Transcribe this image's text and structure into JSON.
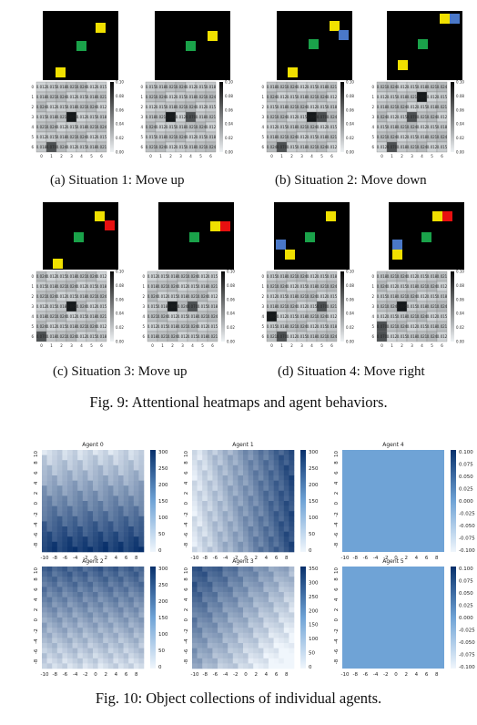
{
  "fig9": {
    "caption": "Fig. 9: Attentional heatmaps and agent behaviors.",
    "subcaptions": [
      "(a) Situation 1: Move up",
      "(b) Situation 2: Move down",
      "(c) Situation 3: Move up",
      "(d) Situation 4: Move right"
    ],
    "colorbar_ticks": [
      "0.10",
      "0.08",
      "0.06",
      "0.04",
      "0.02",
      "0.00"
    ],
    "axis_ticks": [
      "0",
      "1",
      "2",
      "3",
      "4",
      "5",
      "6"
    ],
    "colors": {
      "agent": "#1aa24a",
      "target": "#f0e000",
      "red": "#e81010",
      "blue": "#4a78c8",
      "bg": "#000000"
    }
  },
  "fig10": {
    "caption": "Fig. 10: Object collections of individual agents.",
    "x_ticks": [
      "-10",
      "-8",
      "-6",
      "-4",
      "-2",
      "0",
      "2",
      "4",
      "6",
      "8"
    ],
    "y_ticks": [
      "10",
      "8",
      "6",
      "4",
      "2",
      "0",
      "-2",
      "-4",
      "-6",
      "-8"
    ],
    "panels": [
      {
        "title": "Agent 0",
        "cbar": [
          "300",
          "250",
          "200",
          "150",
          "100",
          "50",
          "0"
        ]
      },
      {
        "title": "Agent 1",
        "cbar": [
          "300",
          "250",
          "200",
          "150",
          "100",
          "50",
          "0"
        ]
      },
      {
        "title": "Agent 4",
        "cbar": [
          "0.100",
          "0.075",
          "0.050",
          "0.025",
          "0.000",
          "-0.025",
          "-0.050",
          "-0.075",
          "-0.100"
        ]
      },
      {
        "title": "Agent 2",
        "cbar": [
          "300",
          "250",
          "200",
          "150",
          "100",
          "50",
          "0"
        ]
      },
      {
        "title": "Agent 3",
        "cbar": [
          "350",
          "300",
          "250",
          "200",
          "150",
          "100",
          "50",
          "0"
        ]
      },
      {
        "title": "Agent 5",
        "cbar": [
          "0.100",
          "0.075",
          "0.050",
          "0.025",
          "0.000",
          "-0.025",
          "-0.050",
          "-0.075",
          "-0.100"
        ]
      }
    ]
  }
}
